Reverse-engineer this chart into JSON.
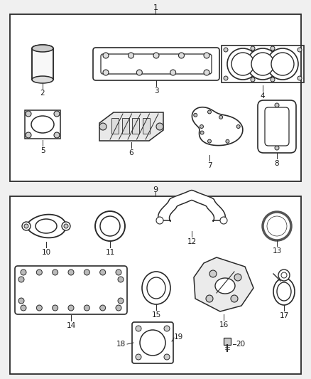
{
  "bg_color": "#f0f0f0",
  "box_color": "#ffffff",
  "line_color": "#2a2a2a",
  "text_color": "#1a1a1a",
  "section1_label": "1",
  "section2_label": "9",
  "figure_width": 4.38,
  "figure_height": 5.33,
  "dpi": 100
}
